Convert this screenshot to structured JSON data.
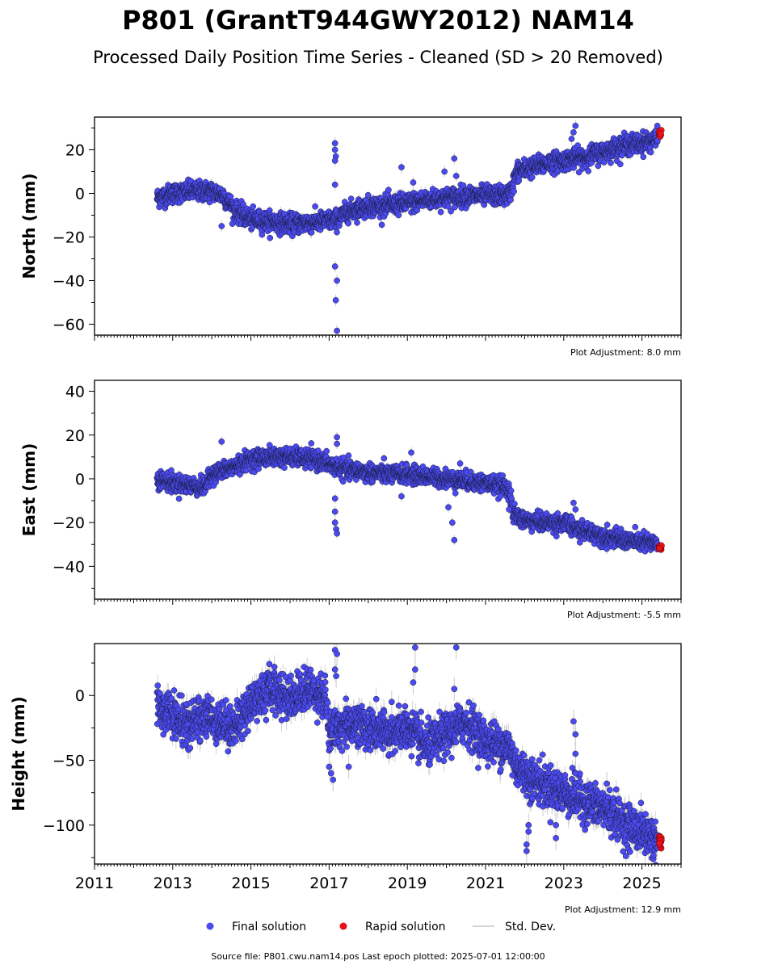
{
  "figure": {
    "title": "P801 (GrantT944GWY2012) NAM14",
    "subtitle": "Processed Daily Position Time Series - Cleaned (SD > 20 Removed)",
    "source_note": "Source file: P801.cwu.nam14.pos  Last epoch plotted: 2025-07-01 12:00:00"
  },
  "legend": {
    "placement": "bottom-center",
    "items": [
      {
        "label": "Final solution",
        "color": "#4a4af0",
        "marker": "circle"
      },
      {
        "label": "Rapid solution",
        "color": "#e8121b",
        "marker": "circle"
      },
      {
        "label": "Std. Dev.",
        "color": "#c8c8c8",
        "marker": "line"
      }
    ]
  },
  "colors": {
    "final": "#4a4af0",
    "final_edge": "#1a1a3a",
    "rapid": "#e8121b",
    "stddev": "#c8c8c8"
  },
  "chart_data": [
    {
      "type": "scatter",
      "ylabel": "North (mm)",
      "xlim": [
        2011,
        2026
      ],
      "ylim": [
        -65,
        35
      ],
      "yticks": [
        20,
        0,
        -20,
        -40,
        -60
      ],
      "x_tick_labels": [],
      "adjustment": "Plot Adjustment: 8.0 mm",
      "trend": [
        [
          2012.6,
          -2
        ],
        [
          2013,
          0
        ],
        [
          2013.5,
          1
        ],
        [
          2014,
          1
        ],
        [
          2014.3,
          -1
        ],
        [
          2014.6,
          -8
        ],
        [
          2015,
          -12
        ],
        [
          2016,
          -14
        ],
        [
          2016.8,
          -13
        ],
        [
          2017.2,
          -12
        ],
        [
          2017.5,
          -8
        ],
        [
          2018,
          -6
        ],
        [
          2018.8,
          -5
        ],
        [
          2019.5,
          -3
        ],
        [
          2020,
          -2
        ],
        [
          2020.5,
          -1
        ],
        [
          2021,
          -1
        ],
        [
          2021.6,
          -1
        ],
        [
          2021.8,
          10
        ],
        [
          2022.2,
          12
        ],
        [
          2022.6,
          14
        ],
        [
          2023,
          15
        ],
        [
          2023.3,
          16
        ],
        [
          2023.6,
          17
        ],
        [
          2024,
          19
        ],
        [
          2024.5,
          22
        ],
        [
          2025,
          23
        ],
        [
          2025.4,
          25
        ]
      ],
      "noise": 2.2,
      "sd": 1.8,
      "outliers": [
        [
          2017.15,
          23
        ],
        [
          2017.15,
          20
        ],
        [
          2017.17,
          17
        ],
        [
          2017.15,
          15
        ],
        [
          2017.15,
          4
        ],
        [
          2017.15,
          -33.5
        ],
        [
          2017.2,
          -40
        ],
        [
          2017.17,
          -49
        ],
        [
          2017.2,
          -63
        ],
        [
          2014.25,
          -15
        ],
        [
          2018.85,
          12
        ],
        [
          2019.15,
          5
        ],
        [
          2019.95,
          10
        ],
        [
          2020.2,
          16
        ],
        [
          2020.25,
          8
        ],
        [
          2023.3,
          31
        ],
        [
          2023.25,
          28
        ],
        [
          2023.2,
          25
        ]
      ],
      "rapid": {
        "x_range": [
          2025.44,
          2025.5
        ],
        "y_range": [
          26,
          29
        ]
      }
    },
    {
      "type": "scatter",
      "ylabel": "East (mm)",
      "xlim": [
        2011,
        2026
      ],
      "ylim": [
        -55,
        45
      ],
      "yticks": [
        40,
        20,
        0,
        -20,
        -40
      ],
      "x_tick_labels": [],
      "adjustment": "Plot Adjustment: -5.5 mm",
      "trend": [
        [
          2012.6,
          0
        ],
        [
          2013,
          -2
        ],
        [
          2013.5,
          -3
        ],
        [
          2013.8,
          -4
        ],
        [
          2014,
          2
        ],
        [
          2014.5,
          5
        ],
        [
          2015,
          9
        ],
        [
          2015.5,
          10
        ],
        [
          2016,
          10
        ],
        [
          2016.6,
          9
        ],
        [
          2017.1,
          6
        ],
        [
          2017.5,
          4
        ],
        [
          2018,
          3
        ],
        [
          2018.5,
          2
        ],
        [
          2019,
          2
        ],
        [
          2019.5,
          1
        ],
        [
          2020,
          0
        ],
        [
          2020.5,
          -1
        ],
        [
          2021,
          -2
        ],
        [
          2021.6,
          -4
        ],
        [
          2021.7,
          -16
        ],
        [
          2022,
          -19
        ],
        [
          2022.5,
          -20
        ],
        [
          2023,
          -20
        ],
        [
          2023.3,
          -23
        ],
        [
          2023.6,
          -24
        ],
        [
          2024,
          -26
        ],
        [
          2024.5,
          -28
        ],
        [
          2025,
          -29
        ],
        [
          2025.4,
          -30
        ]
      ],
      "noise": 2.0,
      "sd": 1.6,
      "outliers": [
        [
          2014.25,
          17
        ],
        [
          2017.2,
          19
        ],
        [
          2017.2,
          16
        ],
        [
          2017.15,
          -9
        ],
        [
          2017.15,
          -15
        ],
        [
          2017.15,
          -20
        ],
        [
          2017.18,
          -23
        ],
        [
          2017.2,
          -25
        ],
        [
          2018.85,
          -8
        ],
        [
          2019.1,
          12
        ],
        [
          2020.05,
          -13
        ],
        [
          2020.15,
          -20
        ],
        [
          2020.2,
          -28
        ],
        [
          2021.6,
          -14
        ],
        [
          2023.25,
          -11
        ],
        [
          2023.3,
          -14
        ],
        [
          2024.1,
          -32
        ],
        [
          2020.35,
          7
        ]
      ],
      "rapid": {
        "x_range": [
          2025.44,
          2025.5
        ],
        "y_range": [
          -33,
          -30
        ]
      }
    },
    {
      "type": "scatter",
      "ylabel": "Height (mm)",
      "xlim": [
        2011,
        2026
      ],
      "ylim": [
        -130,
        40
      ],
      "yticks": [
        0,
        -50,
        -100
      ],
      "x_tick_labels": [
        "2011",
        "2013",
        "2015",
        "2017",
        "2019",
        "2021",
        "2023",
        "2025"
      ],
      "adjustment": "Plot Adjustment: 12.9 mm",
      "trend": [
        [
          2012.6,
          -8
        ],
        [
          2013,
          -15
        ],
        [
          2013.4,
          -25
        ],
        [
          2013.8,
          -15
        ],
        [
          2014.2,
          -20
        ],
        [
          2014.6,
          -25
        ],
        [
          2015,
          -5
        ],
        [
          2015.5,
          5
        ],
        [
          2016,
          -2
        ],
        [
          2016.5,
          5
        ],
        [
          2016.9,
          0
        ],
        [
          2017,
          -30
        ],
        [
          2017.5,
          -20
        ],
        [
          2018,
          -25
        ],
        [
          2018.5,
          -30
        ],
        [
          2019,
          -25
        ],
        [
          2019.5,
          -40
        ],
        [
          2020,
          -30
        ],
        [
          2020.5,
          -20
        ],
        [
          2021,
          -35
        ],
        [
          2021.6,
          -40
        ],
        [
          2021.8,
          -55
        ],
        [
          2022.2,
          -65
        ],
        [
          2022.6,
          -70
        ],
        [
          2023,
          -75
        ],
        [
          2023.4,
          -80
        ],
        [
          2023.8,
          -85
        ],
        [
          2024.2,
          -90
        ],
        [
          2024.6,
          -100
        ],
        [
          2025,
          -105
        ],
        [
          2025.4,
          -112
        ]
      ],
      "noise": 8.0,
      "sd": 6.0,
      "outliers": [
        [
          2017.15,
          35
        ],
        [
          2017.2,
          32
        ],
        [
          2017.15,
          20
        ],
        [
          2017.18,
          15
        ],
        [
          2017,
          -55
        ],
        [
          2017.05,
          -60
        ],
        [
          2017.1,
          -65
        ],
        [
          2017.5,
          -55
        ],
        [
          2019.2,
          37
        ],
        [
          2019.2,
          20
        ],
        [
          2019.15,
          10
        ],
        [
          2020.25,
          37
        ],
        [
          2020.2,
          5
        ],
        [
          2022.05,
          -115
        ],
        [
          2022.05,
          -120
        ],
        [
          2022.1,
          -100
        ],
        [
          2022.1,
          -105
        ],
        [
          2023.25,
          -20
        ],
        [
          2023.3,
          -30
        ],
        [
          2023.3,
          -45
        ],
        [
          2023.3,
          -60
        ],
        [
          2022.8,
          -110
        ],
        [
          2022.8,
          -100
        ],
        [
          2024.1,
          -68
        ],
        [
          2018.6,
          -5
        ],
        [
          2015.6,
          22
        ]
      ],
      "rapid": {
        "x_range": [
          2025.44,
          2025.5
        ],
        "y_range": [
          -120,
          -108
        ]
      }
    }
  ]
}
